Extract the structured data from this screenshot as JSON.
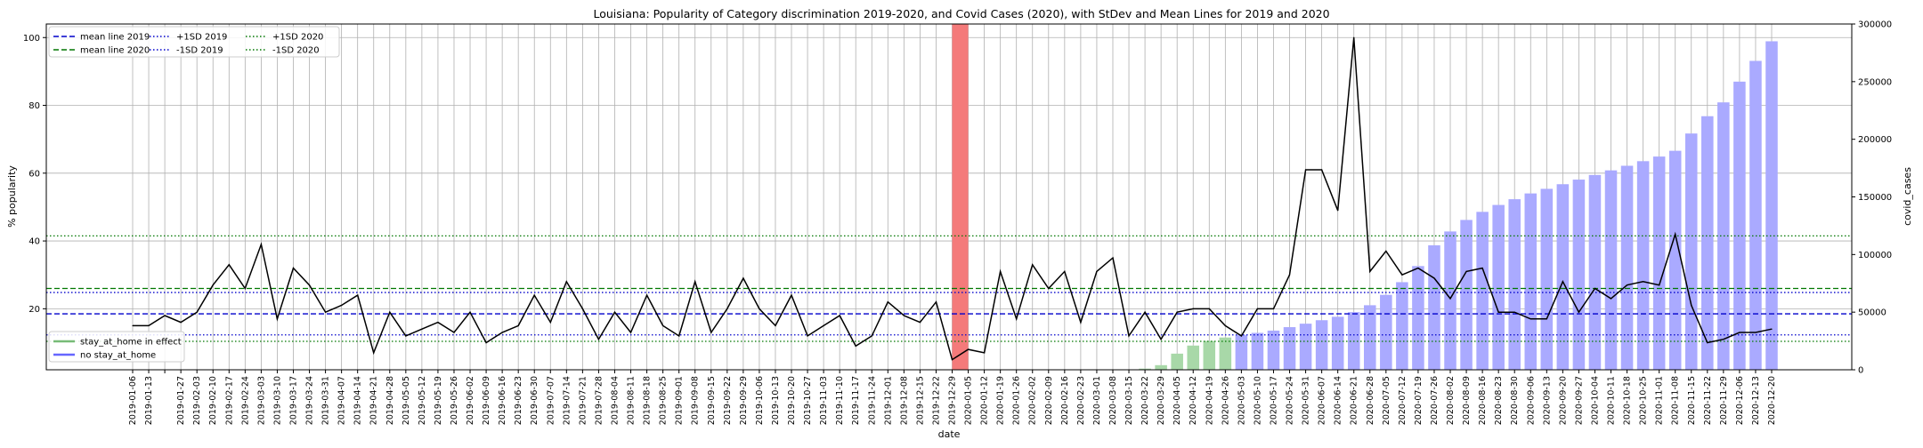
{
  "chart_data": {
    "type": "line",
    "title": "Louisiana: Popularity of Category discrimination 2019-2020, and Covid Cases (2020), with StDev and Mean Lines for 2019 and 2020",
    "xlabel": "date",
    "ylabel": "% popularity",
    "y2label": "covid_cases",
    "ylim": [
      2,
      104
    ],
    "y2lim": [
      0,
      300000
    ],
    "yticks": [
      20,
      40,
      60,
      80,
      100
    ],
    "y2ticks": [
      0,
      50000,
      100000,
      150000,
      200000,
      250000,
      300000
    ],
    "y2ticklabels": [
      "0",
      "50000",
      "100000",
      "150000",
      "200000",
      "250000",
      "300000"
    ],
    "grid": true,
    "legend_position": "upper-left",
    "x": [
      "2019-01-06",
      "2019-01-13",
      "2019-01-20",
      "2019-01-27",
      "2019-02-03",
      "2019-02-10",
      "2019-02-17",
      "2019-02-24",
      "2019-03-03",
      "2019-03-10",
      "2019-03-17",
      "2019-03-24",
      "2019-03-31",
      "2019-04-07",
      "2019-04-14",
      "2019-04-21",
      "2019-04-28",
      "2019-05-05",
      "2019-05-12",
      "2019-05-19",
      "2019-05-26",
      "2019-06-02",
      "2019-06-09",
      "2019-06-16",
      "2019-06-23",
      "2019-06-30",
      "2019-07-07",
      "2019-07-14",
      "2019-07-21",
      "2019-07-28",
      "2019-08-04",
      "2019-08-11",
      "2019-08-18",
      "2019-08-25",
      "2019-09-01",
      "2019-09-08",
      "2019-09-15",
      "2019-09-22",
      "2019-09-29",
      "2019-10-06",
      "2019-10-13",
      "2019-10-20",
      "2019-10-27",
      "2019-11-03",
      "2019-11-10",
      "2019-11-17",
      "2019-11-24",
      "2019-12-01",
      "2019-12-08",
      "2019-12-15",
      "2019-12-22",
      "2019-12-29",
      "2020-01-05",
      "2020-01-12",
      "2020-01-19",
      "2020-01-26",
      "2020-02-02",
      "2020-02-09",
      "2020-02-16",
      "2020-02-23",
      "2020-03-01",
      "2020-03-08",
      "2020-03-15",
      "2020-03-22",
      "2020-03-29",
      "2020-04-05",
      "2020-04-12",
      "2020-04-19",
      "2020-04-26",
      "2020-05-03",
      "2020-05-10",
      "2020-05-17",
      "2020-05-24",
      "2020-05-31",
      "2020-06-07",
      "2020-06-14",
      "2020-06-21",
      "2020-06-28",
      "2020-07-05",
      "2020-07-12",
      "2020-07-19",
      "2020-07-26",
      "2020-08-02",
      "2020-08-09",
      "2020-08-16",
      "2020-08-23",
      "2020-08-30",
      "2020-09-06",
      "2020-09-13",
      "2020-09-20",
      "2020-09-27",
      "2020-10-04",
      "2020-10-11",
      "2020-10-18",
      "2020-10-25",
      "2020-11-01",
      "2020-11-08",
      "2020-11-15",
      "2020-11-22",
      "2020-11-29",
      "2020-12-06",
      "2020-12-13",
      "2020-12-20"
    ],
    "xticklabels": [
      "2019-01-06",
      "2019-01-13",
      "2019-01-27",
      "2019-02-03",
      "2019-02-10",
      "2019-02-17",
      "2019-02-24",
      "2019-03-03",
      "2019-03-10",
      "2019-03-17",
      "2019-03-24",
      "2019-03-31",
      "2019-04-07",
      "2019-04-14",
      "2019-04-21",
      "2019-04-28",
      "2019-05-05",
      "2019-05-12",
      "2019-05-19",
      "2019-05-26",
      "2019-06-02",
      "2019-06-09",
      "2019-06-16",
      "2019-06-23",
      "2019-06-30",
      "2019-07-07",
      "2019-07-14",
      "2019-07-21",
      "2019-07-28",
      "2019-08-04",
      "2019-08-11",
      "2019-08-18",
      "2019-08-25",
      "2019-09-01",
      "2019-09-08",
      "2019-09-15",
      "2019-09-22",
      "2019-09-29",
      "2019-10-06",
      "2019-10-13",
      "2019-10-20",
      "2019-10-27",
      "2019-11-03",
      "2019-11-10",
      "2019-11-17",
      "2019-11-24",
      "2019-12-01",
      "2019-12-08",
      "2019-12-15",
      "2019-12-22",
      "2019-12-29",
      "2020-01-05",
      "2020-01-12",
      "2020-01-19",
      "2020-01-26",
      "2020-02-02",
      "2020-02-09",
      "2020-02-16",
      "2020-02-23",
      "2020-03-01",
      "2020-03-08",
      "2020-03-15",
      "2020-03-22",
      "2020-03-29",
      "2020-04-05",
      "2020-04-12",
      "2020-04-19",
      "2020-04-26",
      "2020-05-03",
      "2020-05-10",
      "2020-05-17",
      "2020-05-24",
      "2020-05-31",
      "2020-06-07",
      "2020-06-14",
      "2020-06-21",
      "2020-06-28",
      "2020-07-05",
      "2020-07-12",
      "2020-07-19",
      "2020-07-26",
      "2020-08-02",
      "2020-08-09",
      "2020-08-16",
      "2020-08-23",
      "2020-08-30",
      "2020-09-06",
      "2020-09-13",
      "2020-09-20",
      "2020-09-27",
      "2020-10-04",
      "2020-10-11",
      "2020-10-18",
      "2020-10-25",
      "2020-11-01",
      "2020-11-08",
      "2020-11-15",
      "2020-11-22",
      "2020-11-29",
      "2020-12-06",
      "2020-12-13",
      "2020-12-20"
    ],
    "popularity": [
      15,
      15,
      18,
      16,
      19,
      27,
      33,
      26,
      39,
      17,
      32,
      27,
      19,
      21,
      24,
      7,
      19,
      12,
      14,
      16,
      13,
      19,
      10,
      13,
      15,
      24,
      16,
      28,
      20,
      11,
      19,
      13,
      24,
      15,
      12,
      28,
      13,
      20,
      29,
      20,
      15,
      24,
      12,
      15,
      18,
      9,
      12,
      22,
      18,
      16,
      22,
      5,
      8,
      7,
      31,
      17,
      33,
      26,
      31,
      16,
      31,
      35,
      12,
      19,
      11,
      19,
      20,
      20,
      15,
      12,
      20,
      20,
      30,
      61,
      61,
      49,
      100,
      31,
      37,
      30,
      32,
      29,
      23,
      31,
      32,
      19,
      19,
      17,
      17,
      28,
      19,
      26,
      23,
      27,
      28,
      27,
      42,
      21,
      10,
      11,
      13,
      13,
      14
    ],
    "covid_cases": [
      0,
      0,
      0,
      0,
      0,
      0,
      0,
      0,
      0,
      0,
      0,
      0,
      0,
      0,
      0,
      0,
      0,
      0,
      0,
      0,
      0,
      0,
      0,
      0,
      0,
      0,
      0,
      0,
      0,
      0,
      0,
      0,
      0,
      0,
      0,
      0,
      0,
      0,
      0,
      0,
      0,
      0,
      0,
      0,
      0,
      0,
      0,
      0,
      0,
      0,
      0,
      0,
      0,
      0,
      0,
      0,
      0,
      0,
      0,
      0,
      0,
      0,
      0,
      1000,
      4000,
      14000,
      21000,
      25000,
      28000,
      30000,
      32000,
      34000,
      37000,
      40000,
      43000,
      46000,
      50000,
      56000,
      65000,
      76000,
      90000,
      108000,
      120000,
      130000,
      137000,
      143000,
      148000,
      153000,
      157000,
      161000,
      165000,
      169000,
      173000,
      177000,
      181000,
      185000,
      190000,
      205000,
      220000,
      232000,
      250000,
      268000,
      285000
    ],
    "stay_at_home_in_effect": [
      false,
      false,
      false,
      false,
      false,
      false,
      false,
      false,
      false,
      false,
      false,
      false,
      false,
      false,
      false,
      false,
      false,
      false,
      false,
      false,
      false,
      false,
      false,
      false,
      false,
      false,
      false,
      false,
      false,
      false,
      false,
      false,
      false,
      false,
      false,
      false,
      false,
      false,
      false,
      false,
      false,
      false,
      false,
      false,
      false,
      false,
      false,
      false,
      false,
      false,
      false,
      false,
      false,
      false,
      false,
      false,
      false,
      false,
      false,
      false,
      false,
      false,
      false,
      true,
      true,
      true,
      true,
      true,
      true,
      false,
      false,
      false,
      false,
      false,
      false,
      false,
      false,
      false,
      false,
      false,
      false,
      false,
      false,
      false,
      false,
      false,
      false,
      false,
      false,
      false,
      false,
      false,
      false,
      false,
      false,
      false,
      false,
      false,
      false,
      false,
      false,
      false,
      false
    ],
    "highlight_x_range": [
      "2019-12-29",
      "2020-01-05"
    ],
    "reference_lines": [
      {
        "name": "mean line 2019",
        "value": 18.5,
        "color": "#0000cc",
        "style": "dashed"
      },
      {
        "name": "mean line 2020",
        "value": 26.0,
        "color": "#007700",
        "style": "dashed"
      },
      {
        "name": "+1SD 2019",
        "value": 24.8,
        "color": "#0000cc",
        "style": "dotted"
      },
      {
        "name": "-1SD 2019",
        "value": 12.3,
        "color": "#0000cc",
        "style": "dotted"
      },
      {
        "name": "+1SD 2020",
        "value": 41.5,
        "color": "#007700",
        "style": "dotted"
      },
      {
        "name": "-1SD 2020",
        "value": 10.4,
        "color": "#007700",
        "style": "dotted"
      }
    ],
    "legend_top": [
      "mean line 2019",
      "mean line 2020",
      "+1SD 2019",
      "-1SD 2019",
      "+1SD 2020",
      "-1SD 2020"
    ],
    "legend_bottom": [
      {
        "name": "stay_at_home in effect",
        "color": "#77bb77"
      },
      {
        "name": "no stay_at_home",
        "color": "#6666ff"
      }
    ],
    "colors": {
      "popularity_line": "#000000",
      "bar_stay": "#a8d8a8",
      "bar_nostay": "#aaaaff",
      "highlight": "#f47a7a",
      "grid": "#b0b0b0"
    }
  }
}
